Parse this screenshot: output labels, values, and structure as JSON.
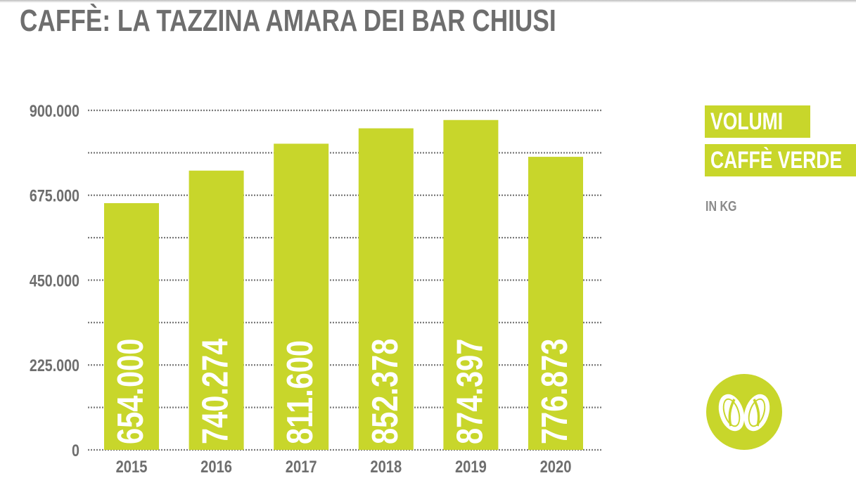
{
  "title": "CAFFÈ: LA TAZZINA AMARA DEI BAR CHIUSI",
  "legend": {
    "line1": "VOLUMI",
    "line2": "CAFFÈ VERDE",
    "unit": "IN KG"
  },
  "logo_icon": "coffee-beans-icon",
  "colors": {
    "bar": "#c8d62b",
    "text": "#6e6e6e",
    "label": "#ffffff"
  },
  "chart_data": {
    "type": "bar",
    "categories": [
      "2015",
      "2016",
      "2017",
      "2018",
      "2019",
      "2020"
    ],
    "values": [
      654000,
      740274,
      811600,
      852378,
      874397,
      776873
    ],
    "data_labels": [
      "654.000",
      "740.274",
      "811.600",
      "852.378",
      "874.397",
      "776.873"
    ],
    "yticks": [
      0,
      225000,
      450000,
      675000,
      900000
    ],
    "ytick_labels": [
      "0",
      "225.000",
      "450.000",
      "675.000",
      "900.000"
    ],
    "ylim": [
      0,
      900000
    ],
    "grid": true,
    "xlabel": "",
    "ylabel": ""
  }
}
